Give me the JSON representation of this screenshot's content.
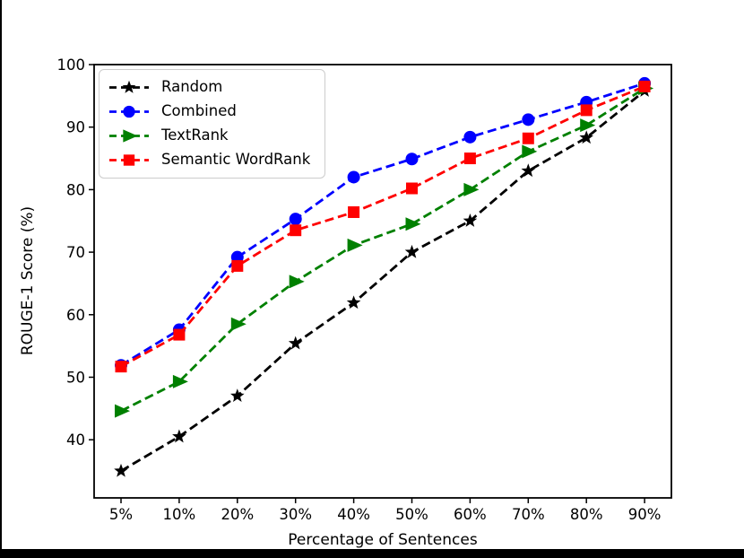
{
  "figure": {
    "background": "#ffffff",
    "window_border_color": "#000000",
    "legend_border_color": "#cccccc"
  },
  "chart_data": {
    "type": "line",
    "title": "",
    "xlabel": "Percentage of Sentences",
    "ylabel": "ROUGE-1 Score (%)",
    "categories": [
      "5%",
      "10%",
      "20%",
      "30%",
      "40%",
      "50%",
      "60%",
      "70%",
      "80%",
      "90%"
    ],
    "y_ticks": [
      40,
      50,
      60,
      70,
      80,
      90,
      100
    ],
    "ylim": [
      30.7,
      100
    ],
    "grid": false,
    "legend_position": "upper-left",
    "line_style": "dashed",
    "series": [
      {
        "name": "Random",
        "color": "#000000",
        "marker": "star",
        "values": [
          35.0,
          40.5,
          47.0,
          55.4,
          61.9,
          70.0,
          75.0,
          83.0,
          88.3,
          95.8
        ]
      },
      {
        "name": "Combined",
        "color": "#0000ff",
        "marker": "circle",
        "values": [
          51.9,
          57.6,
          69.2,
          75.3,
          82.0,
          84.9,
          88.4,
          91.2,
          94.0,
          97.0
        ]
      },
      {
        "name": "TextRank",
        "color": "#008000",
        "marker": "triangle-right",
        "values": [
          44.6,
          49.3,
          58.5,
          65.3,
          71.1,
          74.5,
          80.0,
          86.1,
          90.3,
          96.2
        ]
      },
      {
        "name": "Semantic WordRank",
        "color": "#ff0000",
        "marker": "square",
        "values": [
          51.7,
          56.8,
          67.8,
          73.5,
          76.4,
          80.2,
          85.0,
          88.2,
          92.7,
          96.5
        ]
      }
    ]
  }
}
